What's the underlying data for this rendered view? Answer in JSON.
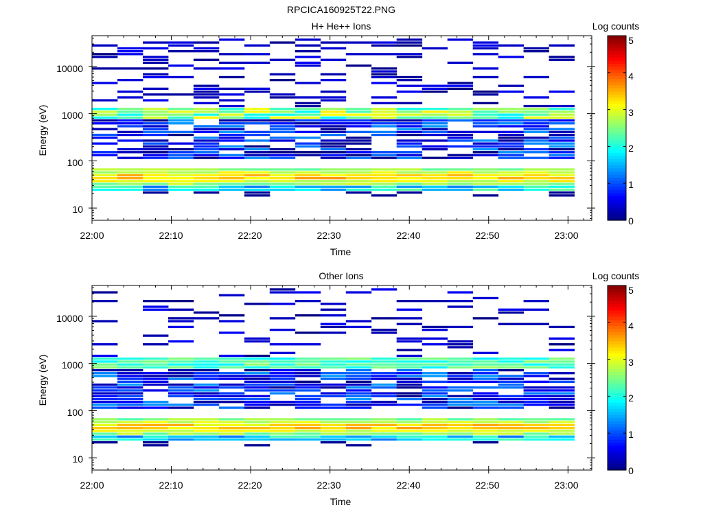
{
  "figure_title": "RPCICA160925T22.PNG",
  "chart_data": [
    {
      "type": "heatmap",
      "title": "H+ He++ Ions",
      "xlabel": "Time",
      "ylabel": "Energy (eV)",
      "colorbar_label": "Log counts",
      "x_ticks": [
        "22:00",
        "22:10",
        "22:20",
        "22:30",
        "22:40",
        "22:50",
        "23:00"
      ],
      "x_range": [
        "22:00",
        "23:03"
      ],
      "y_ticks": [
        "10",
        "100",
        "1000",
        "10000"
      ],
      "y_scale": "log",
      "y_range_ev": [
        5.5,
        45000
      ],
      "colorbar_ticks": [
        "0",
        "1",
        "2",
        "3",
        "4",
        "5"
      ],
      "colorbar_range": [
        0,
        5
      ],
      "colormap": "jet",
      "time_bins": 19,
      "sweep_minutes": 3.2,
      "seed": 7,
      "sparse_density": 0.28
    },
    {
      "type": "heatmap",
      "title": "Other Ions",
      "xlabel": "Time",
      "ylabel": "Energy (eV)",
      "colorbar_label": "Log counts",
      "x_ticks": [
        "22:00",
        "22:10",
        "22:20",
        "22:30",
        "22:40",
        "22:50",
        "23:00"
      ],
      "x_range": [
        "22:00",
        "23:03"
      ],
      "y_ticks": [
        "10",
        "100",
        "1000",
        "10000"
      ],
      "y_scale": "log",
      "y_range_ev": [
        5.5,
        45000
      ],
      "colorbar_ticks": [
        "0",
        "1",
        "2",
        "3",
        "4",
        "5"
      ],
      "colorbar_range": [
        0,
        5
      ],
      "colormap": "jet",
      "time_bins": 19,
      "sweep_minutes": 3.2,
      "seed": 19,
      "sparse_density": 0.18
    }
  ]
}
